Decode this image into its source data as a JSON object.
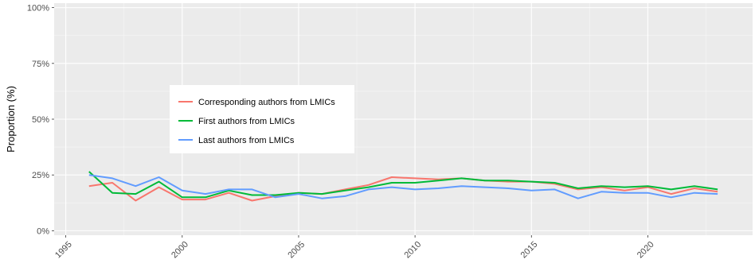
{
  "chart_data": {
    "type": "line",
    "title": "",
    "xlabel": "",
    "ylabel": "Proportion (%)",
    "xlim": [
      1994.5,
      2024.5
    ],
    "ylim": [
      -2,
      102
    ],
    "x_ticks": [
      1995,
      2000,
      2005,
      2010,
      2015,
      2020
    ],
    "x_tick_labels": [
      "1995",
      "2000",
      "2005",
      "2010",
      "2015",
      "2020"
    ],
    "y_ticks": [
      0,
      25,
      50,
      75,
      100
    ],
    "y_tick_labels": [
      "0%",
      "25%",
      "50%",
      "75%",
      "100%"
    ],
    "grid": true,
    "legend_position": "inside-left",
    "x": [
      1996,
      1997,
      1998,
      1999,
      2000,
      2001,
      2002,
      2003,
      2004,
      2005,
      2006,
      2007,
      2008,
      2009,
      2010,
      2011,
      2012,
      2013,
      2014,
      2015,
      2016,
      2017,
      2018,
      2019,
      2020,
      2021,
      2022,
      2023
    ],
    "series": [
      {
        "name": "Corresponding authors from LMICs",
        "color": "#F8766D",
        "values": [
          20,
          21.5,
          13.5,
          19.5,
          14,
          14,
          17,
          13.5,
          15.5,
          17,
          16.5,
          18.5,
          20.5,
          24,
          23.5,
          23,
          23.5,
          22.5,
          22,
          22,
          21,
          18.5,
          19.5,
          18,
          19.5,
          16.5,
          19,
          17.5
        ]
      },
      {
        "name": "First authors from LMICs",
        "color": "#00BA38",
        "values": [
          26.5,
          17,
          16.5,
          22,
          15,
          15,
          18,
          16,
          16,
          17,
          16.5,
          18,
          19.5,
          21.5,
          21.5,
          22.5,
          23.5,
          22.5,
          22.5,
          22,
          21.5,
          19,
          20,
          19.5,
          20,
          18.5,
          20,
          18.5
        ]
      },
      {
        "name": "Last authors from LMICs",
        "color": "#619CFF",
        "values": [
          25,
          23.5,
          20,
          24,
          18,
          16.5,
          18.5,
          18.5,
          15,
          16.5,
          14.5,
          15.5,
          18.5,
          19.5,
          18.5,
          19,
          20,
          19.5,
          19,
          18,
          18.5,
          14.5,
          17.5,
          17,
          17,
          15,
          17,
          16.5
        ]
      }
    ]
  }
}
